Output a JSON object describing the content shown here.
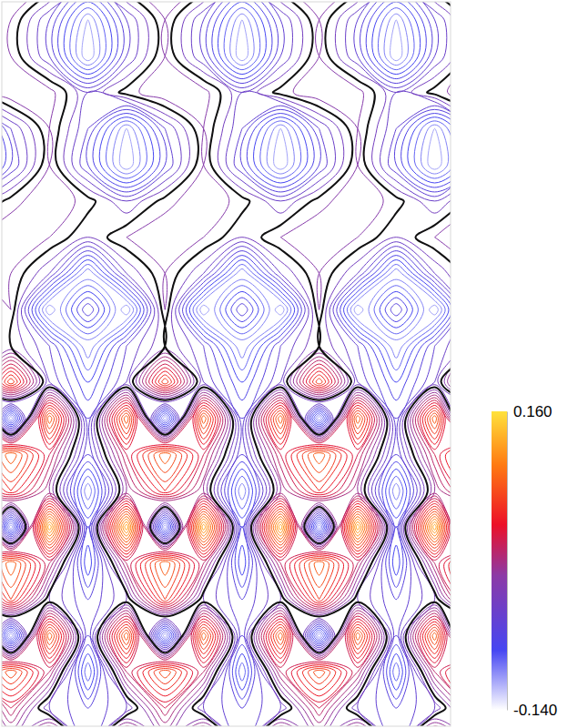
{
  "chart_data": {
    "type": "contour",
    "x": [
      -32.5,
      10,
      52.5,
      95,
      137.5,
      180,
      222.5,
      265,
      307.5,
      350,
      392.5,
      435,
      477.5,
      520
    ],
    "y": [
      -20,
      20,
      60,
      100,
      140,
      180,
      220,
      260,
      300,
      340,
      380,
      420,
      460,
      500,
      540,
      580,
      620,
      660,
      700,
      740,
      780,
      820
    ],
    "xlim": [
      0,
      495
    ],
    "ylim": [
      800,
      0
    ],
    "tick_labels": false,
    "z": [
      [
        -0.01,
        -0.01,
        -0.01,
        -0.05,
        -0.01,
        -0.01,
        -0.01,
        -0.05,
        -0.01,
        -0.01,
        -0.01,
        -0.05,
        -0.01,
        -0.01
      ],
      [
        -0.01,
        -0.01,
        -0.05,
        -0.11,
        -0.05,
        -0.01,
        -0.05,
        -0.11,
        -0.05,
        -0.01,
        -0.05,
        -0.11,
        -0.05,
        -0.01
      ],
      [
        -0.01,
        -0.01,
        -0.05,
        -0.12,
        -0.05,
        -0.01,
        -0.05,
        -0.12,
        -0.05,
        -0.01,
        -0.05,
        -0.12,
        -0.05,
        -0.01
      ],
      [
        -0.02,
        0.0,
        -0.005,
        -0.04,
        -0.015,
        0.0,
        -0.005,
        -0.04,
        -0.015,
        0.0,
        -0.005,
        -0.04,
        -0.015,
        0.0
      ],
      [
        -0.11,
        -0.05,
        -0.01,
        -0.05,
        -0.11,
        -0.05,
        -0.01,
        -0.05,
        -0.11,
        -0.05,
        -0.01,
        -0.05,
        -0.11,
        -0.05
      ],
      [
        -0.12,
        -0.06,
        -0.01,
        -0.06,
        -0.12,
        -0.06,
        -0.01,
        -0.06,
        -0.12,
        -0.06,
        -0.01,
        -0.06,
        -0.12,
        -0.06
      ],
      [
        -0.04,
        -0.015,
        0.0,
        -0.015,
        -0.04,
        -0.015,
        0.0,
        -0.015,
        -0.04,
        -0.015,
        0.0,
        -0.015,
        -0.04,
        -0.015
      ],
      [
        -0.01,
        0.0,
        -0.01,
        -0.03,
        -0.01,
        0.0,
        -0.01,
        -0.03,
        -0.01,
        0.0,
        -0.01,
        -0.03,
        -0.01,
        0.0
      ],
      [
        -0.01,
        -0.01,
        -0.04,
        -0.11,
        -0.04,
        -0.01,
        -0.04,
        -0.11,
        -0.04,
        -0.01,
        -0.04,
        -0.11,
        -0.04,
        -0.01
      ],
      [
        -0.02,
        -0.01,
        -0.12,
        -0.05,
        -0.12,
        -0.01,
        -0.12,
        -0.05,
        -0.12,
        -0.01,
        -0.12,
        -0.05,
        -0.12,
        -0.01
      ],
      [
        -0.02,
        -0.02,
        -0.05,
        -0.11,
        -0.05,
        -0.02,
        -0.05,
        -0.11,
        -0.05,
        -0.02,
        -0.05,
        -0.11,
        -0.05,
        -0.02
      ],
      [
        -0.04,
        0.08,
        -0.04,
        -0.08,
        -0.04,
        0.08,
        -0.04,
        -0.08,
        -0.04,
        0.08,
        -0.04,
        -0.08,
        -0.04,
        0.08
      ],
      [
        0.1,
        -0.12,
        0.1,
        -0.06,
        0.1,
        -0.12,
        0.1,
        -0.06,
        0.1,
        -0.12,
        0.1,
        -0.06,
        0.1,
        -0.12
      ],
      [
        0.03,
        0.1,
        0.03,
        -0.06,
        0.03,
        0.1,
        0.03,
        -0.06,
        0.03,
        0.1,
        0.03,
        -0.06,
        0.03,
        0.1
      ],
      [
        0.0,
        0.06,
        0.0,
        -0.11,
        0.0,
        0.06,
        0.0,
        -0.11,
        0.0,
        0.06,
        0.0,
        -0.11,
        0.0,
        0.06
      ],
      [
        0.14,
        -0.12,
        0.14,
        -0.07,
        0.14,
        -0.12,
        0.14,
        -0.07,
        0.14,
        -0.12,
        0.14,
        -0.07,
        0.14,
        -0.12
      ],
      [
        0.02,
        0.1,
        0.02,
        -0.09,
        0.02,
        0.1,
        0.02,
        -0.09,
        0.02,
        0.1,
        0.02,
        -0.09,
        0.02,
        0.1
      ],
      [
        -0.03,
        0.07,
        -0.03,
        -0.06,
        -0.03,
        0.07,
        -0.03,
        -0.06,
        -0.03,
        0.07,
        -0.03,
        -0.06,
        -0.03,
        0.07
      ],
      [
        0.1,
        -0.12,
        0.1,
        -0.06,
        0.1,
        -0.12,
        0.1,
        -0.06,
        0.1,
        -0.12,
        0.1,
        -0.06,
        0.1,
        -0.12
      ],
      [
        0.02,
        0.09,
        0.02,
        -0.1,
        0.02,
        0.09,
        0.02,
        -0.1,
        0.02,
        0.09,
        0.02,
        -0.1,
        0.02,
        0.09
      ],
      [
        -0.04,
        0.03,
        -0.04,
        -0.06,
        -0.04,
        0.03,
        -0.04,
        -0.06,
        -0.04,
        0.03,
        -0.04,
        -0.06,
        -0.04,
        0.03
      ],
      [
        0.06,
        -0.02,
        0.06,
        -0.05,
        0.06,
        -0.02,
        0.06,
        -0.05,
        0.06,
        -0.02,
        0.06,
        -0.05,
        0.06,
        -0.02
      ]
    ],
    "levels": [
      -0.13,
      -0.12,
      -0.11,
      -0.1,
      -0.09,
      -0.08,
      -0.07,
      -0.06,
      -0.05,
      -0.04,
      -0.03,
      -0.02,
      -0.01,
      0.0,
      0.01,
      0.02,
      0.03,
      0.04,
      0.05,
      0.06,
      0.07,
      0.08,
      0.09,
      0.1,
      0.11,
      0.12,
      0.13,
      0.14,
      0.15
    ],
    "highlight_level": -0.02,
    "zlim": [
      -0.14,
      0.16
    ],
    "zticks": [
      {
        "value": -0.14,
        "label": "-0.140"
      },
      {
        "value": 0.16,
        "label": "0.160"
      }
    ]
  }
}
